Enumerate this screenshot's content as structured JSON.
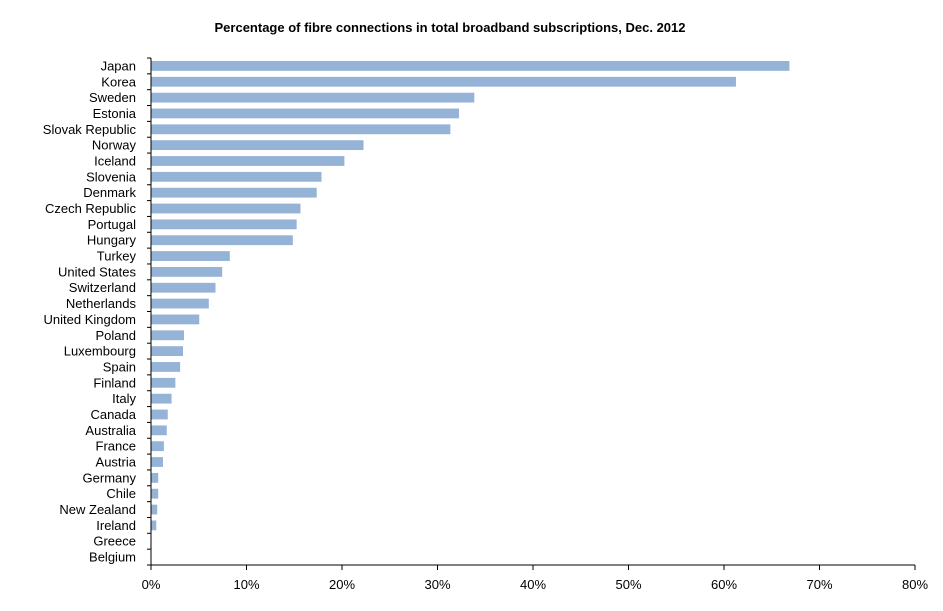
{
  "chart_data": {
    "type": "bar",
    "orientation": "horizontal",
    "title": "Percentage of fibre connections in total broadband subscriptions, Dec. 2012",
    "xlabel": "",
    "ylabel": "",
    "categories": [
      "Japan",
      "Korea",
      "Sweden",
      "Estonia",
      "Slovak Republic",
      "Norway",
      "Iceland",
      "Slovenia",
      "Denmark",
      "Czech Republic",
      "Portugal",
      "Hungary",
      "Turkey",
      "United States",
      "Switzerland",
      "Netherlands",
      "United Kingdom",
      "Poland",
      "Luxembourg",
      "Spain",
      "Finland",
      "Italy",
      "Canada",
      "Australia",
      "France",
      "Austria",
      "Germany",
      "Chile",
      "New Zealand",
      "Ireland",
      "Greece",
      "Belgium"
    ],
    "values": [
      66.8,
      61.2,
      33.8,
      32.2,
      31.3,
      22.2,
      20.2,
      17.8,
      17.3,
      15.6,
      15.2,
      14.8,
      8.2,
      7.4,
      6.7,
      6.0,
      5.0,
      3.4,
      3.3,
      3.0,
      2.5,
      2.1,
      1.7,
      1.6,
      1.3,
      1.2,
      0.7,
      0.7,
      0.6,
      0.5,
      0.0,
      0.0
    ],
    "unit": "%",
    "xlim": [
      0,
      80
    ],
    "xticks": [
      "0%",
      "10%",
      "20%",
      "30%",
      "40%",
      "50%",
      "60%",
      "70%",
      "80%"
    ],
    "grid": false,
    "bar_color": "#95B3D7"
  }
}
